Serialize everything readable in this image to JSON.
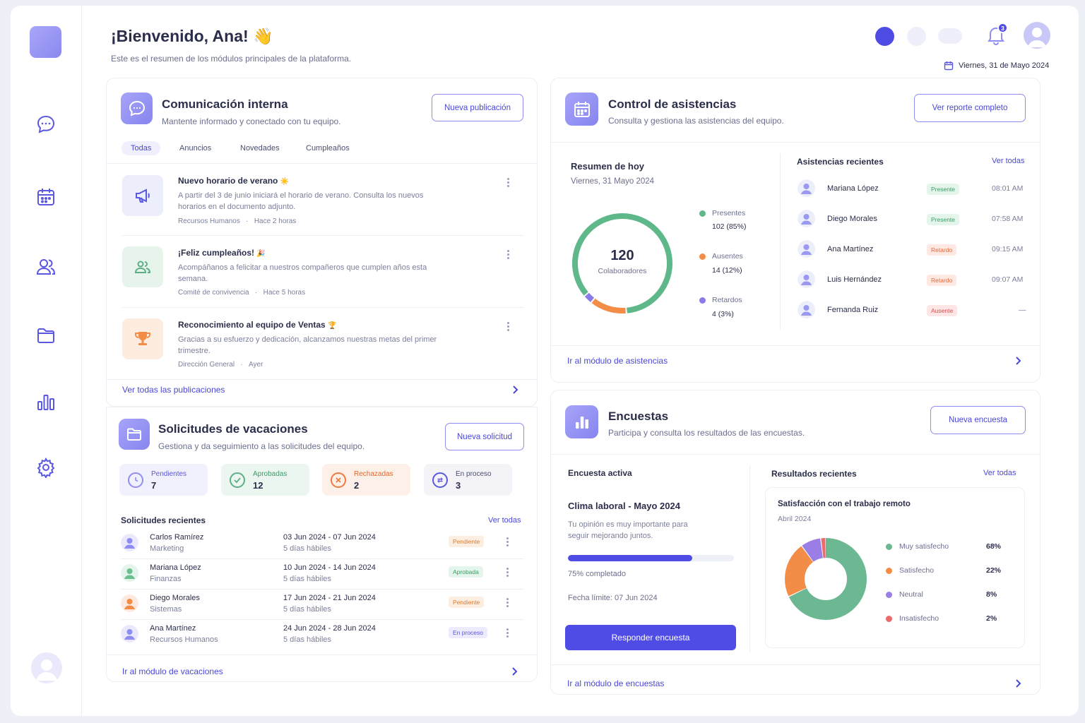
{
  "header": {
    "title": "¡Bienvenido, Ana!",
    "wave": "👋",
    "subtitle": "Este es el resumen de los módulos principales de la plataforma.",
    "date": "Viernes, 31 de Mayo 2024",
    "notifications_count": "3"
  },
  "sidebar": {
    "items": [
      "chat-icon",
      "calendar-icon",
      "users-icon",
      "folder-icon",
      "bar-chart-icon",
      "gear-icon"
    ]
  },
  "comunicacion": {
    "title": "Comunicación interna",
    "subtitle": "Mantente informado y conectado con tu equipo.",
    "new_button": "Nueva publicación",
    "tabs": [
      "Todas",
      "Anuncios",
      "Novedades",
      "Cumpleaños"
    ],
    "posts": [
      {
        "title": "Nuevo horario de verano",
        "emoji": "☀️",
        "body": "A partir del 3 de junio iniciará el horario de verano. Consulta los nuevos horarios en el documento adjunto.",
        "author": "Recursos Humanos",
        "time": "Hace 2 horas"
      },
      {
        "title": "¡Feliz cumpleaños!",
        "emoji": "🎉",
        "body": "Acompáñanos a felicitar a nuestros compañeros que cumplen años esta semana.",
        "author": "Comité de convivencia",
        "time": "Hace 5 horas"
      },
      {
        "title": "Reconocimiento al equipo de Ventas",
        "emoji": "🏆",
        "body": "Gracias a su esfuerzo y dedicación, alcanzamos nuestras metas del primer trimestre.",
        "author": "Dirección General",
        "time": "Ayer"
      }
    ],
    "footer_link": "Ver todas las publicaciones"
  },
  "vacaciones": {
    "title": "Solicitudes de vacaciones",
    "subtitle": "Gestiona y da seguimiento a las solicitudes del equipo.",
    "new_button": "Nueva solicitud",
    "stats": [
      {
        "label": "Pendientes",
        "value": "7"
      },
      {
        "label": "Aprobadas",
        "value": "12"
      },
      {
        "label": "Rechazadas",
        "value": "2"
      },
      {
        "label": "En proceso",
        "value": "3"
      }
    ],
    "recent_title": "Solicitudes recientes",
    "see_all": "Ver todas",
    "requests": [
      {
        "name": "Carlos Ramírez",
        "dept": "Marketing",
        "range": "03 Jun 2024 - 07 Jun 2024",
        "days": "5 días hábiles",
        "status": "Pendiente"
      },
      {
        "name": "Mariana López",
        "dept": "Finanzas",
        "range": "10 Jun 2024 - 14 Jun 2024",
        "days": "5 días hábiles",
        "status": "Aprobada"
      },
      {
        "name": "Diego Morales",
        "dept": "Sistemas",
        "range": "17 Jun 2024 - 21 Jun 2024",
        "days": "5 días hábiles",
        "status": "Pendiente"
      },
      {
        "name": "Ana Martínez",
        "dept": "Recursos Humanos",
        "range": "24 Jun 2024 - 28 Jun 2024",
        "days": "5 días hábiles",
        "status": "En proceso"
      }
    ],
    "footer_link": "Ir al módulo de vacaciones"
  },
  "asistencias": {
    "title": "Control de asistencias",
    "subtitle": "Consulta y gestiona las asistencias del equipo.",
    "report_button": "Ver reporte completo",
    "summary_title": "Resumen de hoy",
    "summary_date": "Viernes, 31 Mayo 2024",
    "total": "120",
    "total_label": "Colaboradores",
    "legend": [
      {
        "label": "Presentes",
        "value": "102 (85%)",
        "color": "#5fb88a",
        "pct": 85
      },
      {
        "label": "Ausentes",
        "value": "14 (12%)",
        "color": "#f28c46",
        "pct": 12
      },
      {
        "label": "Retardos",
        "value": "4 (3%)",
        "color": "#8a7ce8",
        "pct": 3
      }
    ],
    "recent_title": "Asistencias recientes",
    "see_all": "Ver todas",
    "recent": [
      {
        "name": "Mariana López",
        "status": "Presente",
        "time": "08:01 AM"
      },
      {
        "name": "Diego Morales",
        "status": "Presente",
        "time": "07:58 AM"
      },
      {
        "name": "Ana Martínez",
        "status": "Retardo",
        "time": "09:15 AM"
      },
      {
        "name": "Luis Hernández",
        "status": "Retardo",
        "time": "09:07 AM"
      },
      {
        "name": "Fernanda Ruiz",
        "status": "Ausente",
        "time": "—"
      }
    ],
    "footer_link": "Ir al módulo de asistencias"
  },
  "encuestas": {
    "title": "Encuestas",
    "subtitle": "Participa y consulta los resultados de las encuestas.",
    "new_button": "Nueva encuesta",
    "active_title": "Encuesta activa",
    "survey_name": "Clima laboral - Mayo 2024",
    "survey_desc": "Tu opinión es muy importante para seguir mejorando juntos.",
    "progress": 75,
    "progress_label": "75% completado",
    "deadline": "Fecha límite: 07 Jun 2024",
    "respond_button": "Responder encuesta",
    "results_title": "Resultados recientes",
    "see_all": "Ver todas",
    "result_name": "Satisfacción con el trabajo remoto",
    "result_date": "Abril 2024",
    "results": [
      {
        "label": "Muy satisfecho",
        "value": "68%",
        "color": "#6cb892",
        "pct": 68
      },
      {
        "label": "Satisfecho",
        "value": "22%",
        "color": "#f28c46",
        "pct": 22
      },
      {
        "label": "Neutral",
        "value": "8%",
        "color": "#9a7ee6",
        "pct": 8
      },
      {
        "label": "Insatisfecho",
        "value": "2%",
        "color": "#ee6a6a",
        "pct": 2
      }
    ],
    "footer_link": "Ir al módulo de encuestas"
  }
}
